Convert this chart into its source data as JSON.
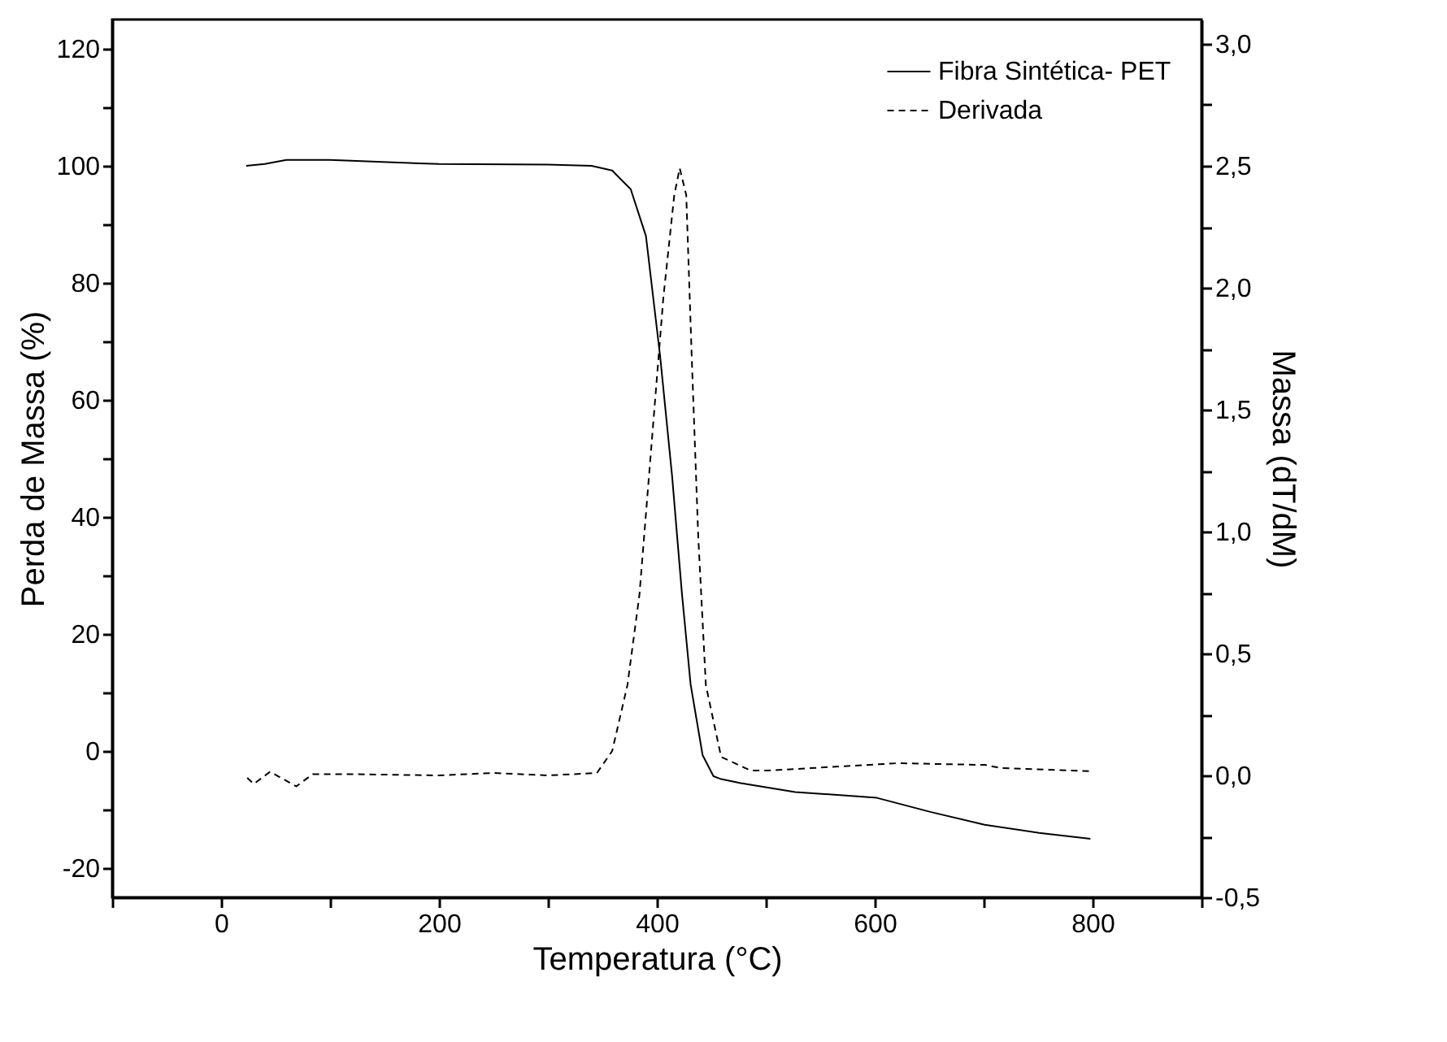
{
  "chart_data": {
    "type": "line",
    "xlabel": "Temperatura (°C)",
    "ylabel": "Perda de Massa (%)",
    "y2label": "Massa (dT/dM)",
    "xlim": [
      -100,
      900
    ],
    "xticks": [
      {
        "value": -100,
        "label": null
      },
      0,
      {
        "value": 100,
        "label": null
      },
      200,
      {
        "value": 300,
        "label": null
      },
      400,
      {
        "value": 500,
        "label": null
      },
      600,
      {
        "value": 700,
        "label": null
      },
      800,
      {
        "value": 900,
        "label": null
      }
    ],
    "ylim": [
      -25,
      125
    ],
    "yticks": [
      -20,
      {
        "value": -10,
        "label": null
      },
      0,
      {
        "value": 10,
        "label": null
      },
      20,
      {
        "value": 30,
        "label": null
      },
      40,
      {
        "value": 50,
        "label": null
      },
      60,
      {
        "value": 70,
        "label": null
      },
      80,
      {
        "value": 90,
        "label": null
      },
      100,
      {
        "value": 110,
        "label": null
      },
      120
    ],
    "y2lim": [
      -0.5,
      3.1
    ],
    "y2ticks": [
      {
        "value": -0.5,
        "label": "-0,5"
      },
      {
        "value": -0.25,
        "label": null
      },
      {
        "value": 0,
        "label": "0,0"
      },
      {
        "value": 0.25,
        "label": null
      },
      {
        "value": 0.5,
        "label": "0,5"
      },
      {
        "value": 0.75,
        "label": null
      },
      {
        "value": 1,
        "label": "1,0"
      },
      {
        "value": 1.25,
        "label": null
      },
      {
        "value": 1.5,
        "label": "1,5"
      },
      {
        "value": 1.75,
        "label": null
      },
      {
        "value": 2,
        "label": "2,0"
      },
      {
        "value": 2.25,
        "label": null
      },
      {
        "value": 2.5,
        "label": "2,5"
      },
      {
        "value": 2.75,
        "label": null
      },
      {
        "value": 3,
        "label": "3,0"
      }
    ],
    "grid": false,
    "legend": "top right",
    "marker": "none",
    "series": [
      {
        "name": "Fibra Sintética- PET",
        "color": "#000000",
        "line_style": "solid",
        "x": [
          23,
          40,
          60,
          100,
          200,
          300,
          340,
          359,
          376,
          390,
          403,
          414,
          423,
          431,
          442,
          452,
          459,
          477,
          527,
          602,
          651,
          701,
          751,
          798
        ],
        "values": [
          100,
          100.3,
          101,
          101,
          100.3,
          100.2,
          100,
          99.2,
          96,
          88,
          67.5,
          47,
          27,
          11.4,
          -0.7,
          -4.3,
          -4.8,
          -5.5,
          -7,
          -8,
          -10.4,
          -12.6,
          -14,
          -15
        ]
      },
      {
        "name": "Derivada",
        "color": "#000000",
        "line_style": "dashed",
        "axis": "y2",
        "x": [
          24,
          30,
          45,
          69,
          84,
          120,
          200,
          250,
          300,
          345,
          359,
          373,
          384,
          395,
          406,
          416,
          421,
          427,
          432,
          438,
          445,
          459,
          486,
          502,
          621,
          701,
          716,
          798
        ],
        "values": [
          -0.01,
          -0.035,
          0.015,
          -0.045,
          0.005,
          0.005,
          0.0,
          0.01,
          0.0,
          0.01,
          0.1,
          0.37,
          0.74,
          1.35,
          1.96,
          2.38,
          2.49,
          2.38,
          1.72,
          0.98,
          0.37,
          0.076,
          0.02,
          0.02,
          0.05,
          0.043,
          0.03,
          0.017
        ]
      }
    ]
  }
}
